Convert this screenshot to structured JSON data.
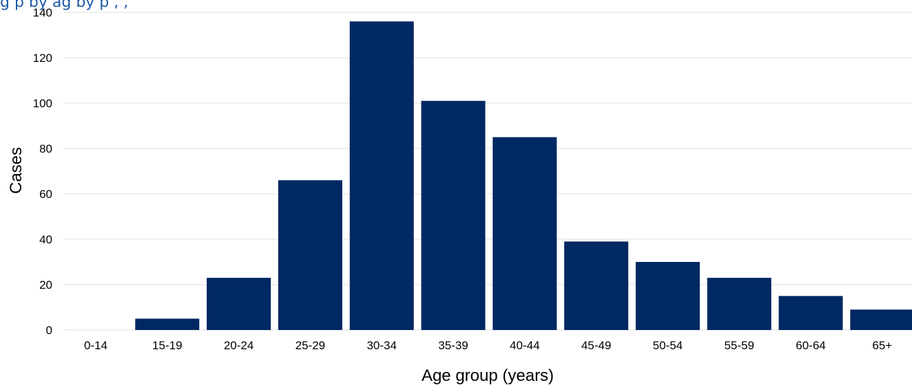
{
  "chart_data": {
    "type": "bar",
    "title": "",
    "title_visible_fragment": "g   p    by ag  by  p     ,    ,",
    "xlabel": "Age group (years)",
    "ylabel": "Cases",
    "categories": [
      "0-14",
      "15-19",
      "20-24",
      "25-29",
      "30-34",
      "35-39",
      "40-44",
      "45-49",
      "50-54",
      "55-59",
      "60-64",
      "65+"
    ],
    "values": [
      0,
      5,
      23,
      66,
      136,
      101,
      85,
      39,
      30,
      23,
      15,
      9
    ],
    "ylim": [
      0,
      140
    ],
    "yticks": [
      0,
      20,
      40,
      60,
      80,
      100,
      120,
      140
    ],
    "grid": "horizontal",
    "legend": "none",
    "bar_color": "#002862",
    "title_color": "#1f5ba8"
  }
}
